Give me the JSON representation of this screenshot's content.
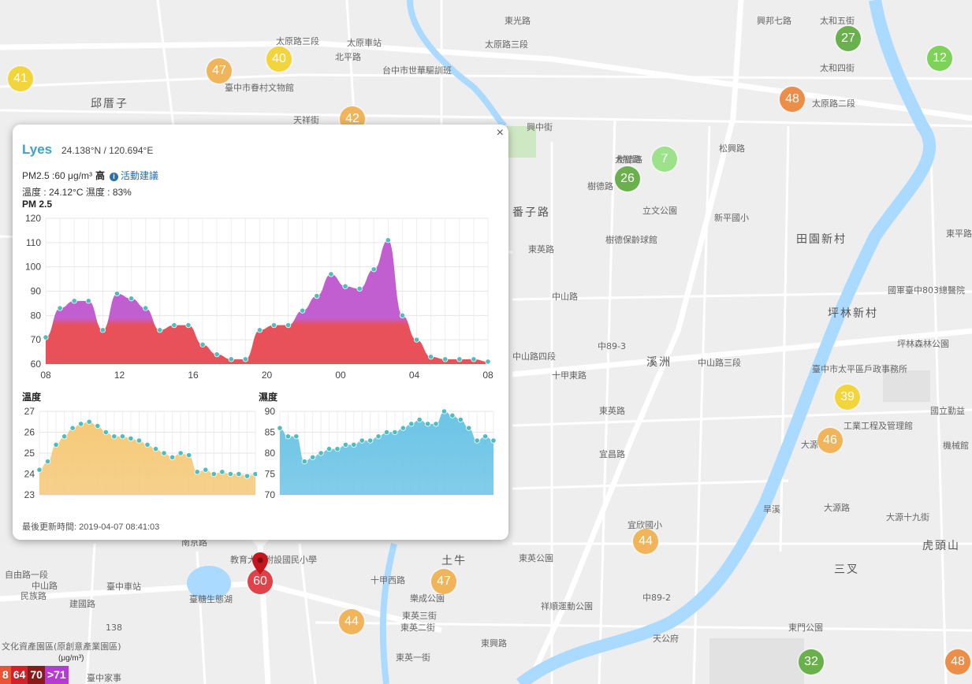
{
  "map": {
    "district_labels": [
      "邱厝子",
      "番子路",
      "田園新村",
      "坪林新村",
      "溪洲",
      "三叉",
      "虎頭山",
      "土牛"
    ],
    "road_labels": [
      "太原路三段",
      "太原車站",
      "北平路",
      "台中市世華驅訓班",
      "太原路三段",
      "東光路",
      "興邦七路",
      "太和五街",
      "太和四街",
      "太原路二段",
      "臺中市眷村文物館",
      "天祥街",
      "興中街",
      "大智路",
      "樹德路",
      "松興路",
      "立文公園",
      "新平國小",
      "樹德路",
      "樹德保齡球館",
      "東英路",
      "國軍臺中803總醫院",
      "坪林森林公園",
      "中山路",
      "中山路四段",
      "中89-3",
      "中山路三段",
      "臺中市太平區戶政事務所",
      "國立勤益",
      "工業工程及管理館",
      "機械館",
      "大源",
      "十甲東路",
      "東英路",
      "宜欣國小",
      "東英公園",
      "祥順運動公園",
      "中89-2",
      "樂成公園",
      "東英三街",
      "東英二街",
      "東英一街",
      "十甲西路",
      "東興路",
      "東門公園",
      "臺中車站",
      "臺糖生態湖",
      "南京路",
      "教育大學附設國民小學",
      "自由路一段",
      "中山路",
      "民族路",
      "建國路",
      "文化資產園區(原創意產業園區)",
      "臺中家事",
      "大源十九街",
      "大源路",
      "旱溪",
      "東平路",
      "宜昌路",
      "天公府",
      "138"
    ],
    "markers": [
      {
        "value": "41",
        "color": "#f2d53c"
      },
      {
        "value": "47",
        "color": "#f0b55a"
      },
      {
        "value": "40",
        "color": "#f2d53c"
      },
      {
        "value": "42",
        "color": "#f0b55a"
      },
      {
        "value": "27",
        "color": "#6ab04c"
      },
      {
        "value": "12",
        "color": "#7ed25a"
      },
      {
        "value": "48",
        "color": "#ec8d48"
      },
      {
        "value": "7",
        "color": "#9be28a"
      },
      {
        "value": "26",
        "color": "#6ab04c"
      },
      {
        "value": "39",
        "color": "#f2d53c"
      },
      {
        "value": "46",
        "color": "#f0b55a"
      },
      {
        "value": "44",
        "color": "#f0b55a"
      },
      {
        "value": "47",
        "color": "#f0b55a"
      },
      {
        "value": "44",
        "color": "#f0b55a"
      },
      {
        "value": "60",
        "color": "#e0424a"
      },
      {
        "value": "32",
        "color": "#6ab04c"
      },
      {
        "value": "48",
        "color": "#ec8d48"
      }
    ],
    "legend": {
      "unit": "(μg/m³)",
      "items": [
        {
          "label": "8",
          "color": "#e85535"
        },
        {
          "label": "64",
          "color": "#d4202a"
        },
        {
          "label": "70",
          "color": "#8a1a1a"
        },
        {
          "label": ">71",
          "color": "#b83ad4"
        }
      ]
    }
  },
  "popup": {
    "close_label": "×",
    "station": "Lyes",
    "coords": "24.138°N / 120.694°E",
    "pm25_text": "PM2.5 :60 μg/m³",
    "level": "高",
    "advice_label": "活動建議",
    "info_icon": "i",
    "temp_humidity_text": "溫度 : 24.12°C  濕度 : 83%",
    "updated": "最後更新時間: 2019-04-07 08:41:03"
  },
  "chart_data": [
    {
      "type": "area",
      "title": "PM 2.5",
      "x_ticks": [
        "08",
        "12",
        "16",
        "20",
        "00",
        "04",
        "08"
      ],
      "ylim": [
        60,
        120
      ],
      "y_ticks": [
        60,
        70,
        80,
        90,
        100,
        110,
        120
      ],
      "values": [
        71,
        83,
        86,
        86,
        74,
        89,
        87,
        83,
        74,
        76,
        76,
        68,
        64,
        62,
        62,
        74,
        76,
        76,
        82,
        88,
        97,
        92,
        91,
        99,
        111,
        80,
        70,
        63,
        62,
        62,
        62,
        61
      ],
      "colors": {
        "high": "#c25fd0",
        "low": "#e8505a",
        "point": "#4ebdbe"
      },
      "grid": true
    },
    {
      "type": "area",
      "title": "溫度",
      "ylim": [
        23,
        27
      ],
      "y_ticks": [
        23,
        24,
        25,
        26,
        27
      ],
      "values": [
        24.2,
        24.6,
        25.4,
        25.8,
        26.2,
        26.4,
        26.5,
        26.3,
        26.0,
        25.8,
        25.8,
        25.7,
        25.6,
        25.4,
        25.2,
        25.0,
        24.8,
        25.0,
        24.9,
        24.1,
        24.2,
        24.0,
        24.1,
        24.0,
        24.0,
        23.9,
        24.0
      ],
      "colors": {
        "fill": "#f5c978",
        "point": "#4ebdbe"
      },
      "grid": true
    },
    {
      "type": "area",
      "title": "濕度",
      "ylim": [
        70,
        90
      ],
      "y_ticks": [
        70,
        75,
        80,
        85,
        90
      ],
      "values": [
        86,
        84,
        84,
        78,
        79,
        80,
        81,
        81,
        82,
        82,
        83,
        83,
        84,
        85,
        85,
        86,
        87,
        88,
        87,
        87,
        90,
        89,
        88,
        86,
        83,
        84,
        83
      ],
      "colors": {
        "fill": "#6cc4e6",
        "point": "#4ebdbe"
      },
      "grid": true
    }
  ]
}
